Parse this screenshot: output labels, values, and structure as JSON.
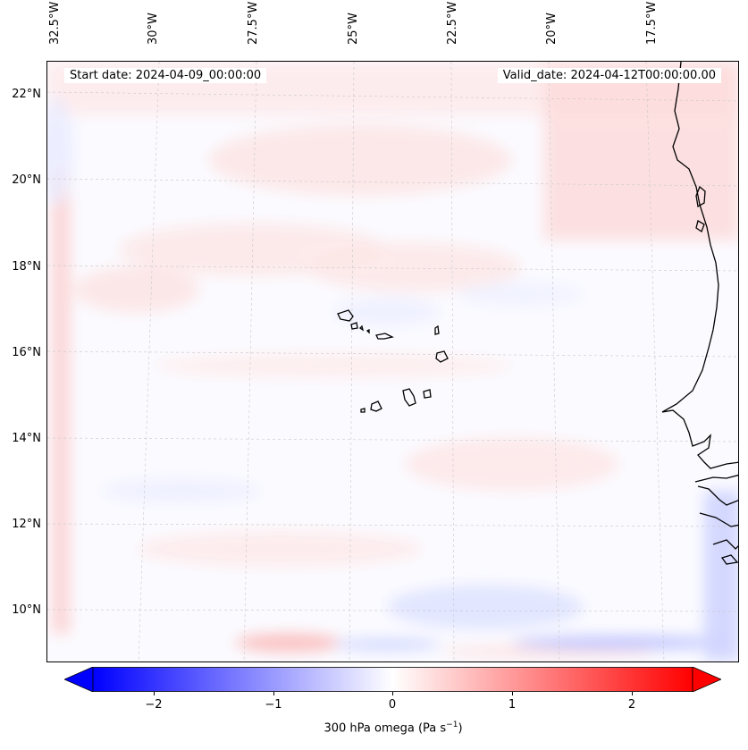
{
  "map": {
    "projection": "regional lat/lon grid",
    "field": "300 hPa omega",
    "background_color": "#fbfbff",
    "coastline_color": "#000000",
    "gridline_color": "#c8c8c8",
    "lon_labels": [
      "32.5°W",
      "30°W",
      "27.5°W",
      "25°W",
      "22.5°W",
      "20°W",
      "17.5°W"
    ],
    "lat_labels": [
      "22°N",
      "20°N",
      "18°N",
      "16°N",
      "14°N",
      "12°N",
      "10°N"
    ],
    "start_date": "Start date: 2024-04-09_00:00:00",
    "valid_date": "Valid_date: 2024-04-12T00:00:00.00",
    "extent": {
      "lon": [
        -32.7,
        -15.5
      ],
      "lat": [
        8.9,
        22.8
      ]
    }
  },
  "colorbar": {
    "label_text": "300 hPa omega (Pa s",
    "label_sup": "−1",
    "label_close": ")",
    "ticks": [
      "−2",
      "−1",
      "0",
      "1",
      "2"
    ],
    "tick_values": [
      -2,
      -1,
      0,
      1,
      2
    ],
    "range": [
      -2.6,
      2.6
    ],
    "extend": "both",
    "colors": {
      "low": "#0000ff",
      "mid": "#ffffff",
      "high": "#ff0000"
    }
  }
}
